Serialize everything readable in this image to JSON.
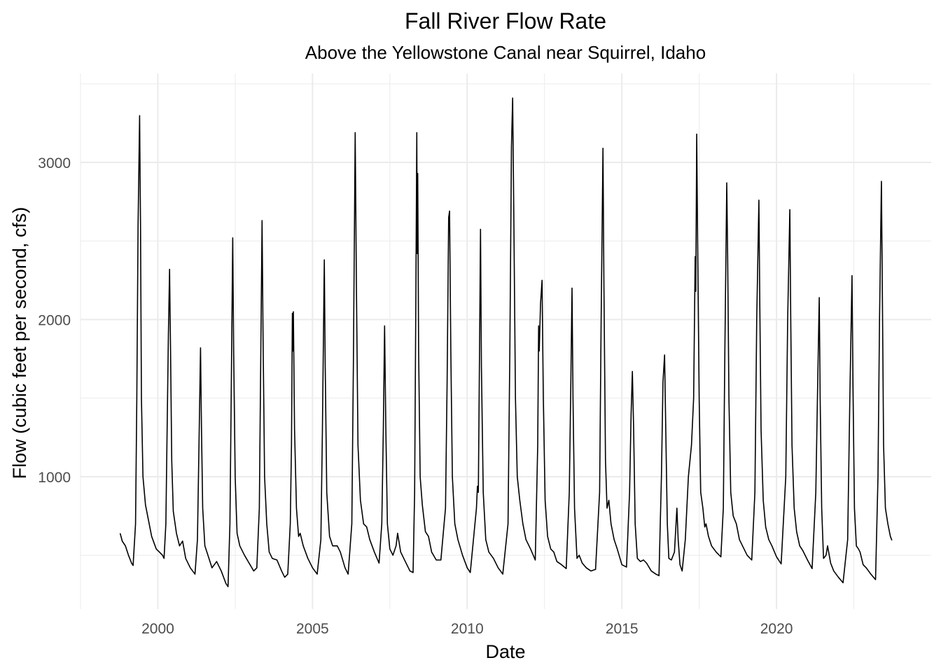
{
  "chart_data": {
    "type": "line",
    "title": "Fall River Flow Rate",
    "subtitle": "Above the Yellowstone Canal near Squirrel, Idaho",
    "xlabel": "Date",
    "ylabel": "Flow (cubic feet per second, cfs)",
    "xlim": [
      1997.5,
      2025.0
    ],
    "ylim": [
      158,
      3566
    ],
    "x_ticks": [
      2000,
      2005,
      2010,
      2015,
      2020
    ],
    "x_tick_labels": [
      "2000",
      "2005",
      "2010",
      "2015",
      "2020"
    ],
    "y_ticks": [
      1000,
      2000,
      3000
    ],
    "y_tick_labels": [
      "1000",
      "2000",
      "3000"
    ],
    "grid": true,
    "line_color": "#000000",
    "series": [
      {
        "name": "Flow",
        "points": [
          [
            1998.78,
            640
          ],
          [
            1998.85,
            590
          ],
          [
            1998.95,
            560
          ],
          [
            1999.05,
            500
          ],
          [
            1999.15,
            450
          ],
          [
            1999.2,
            435
          ],
          [
            1999.28,
            700
          ],
          [
            1999.32,
            1500
          ],
          [
            1999.36,
            2600
          ],
          [
            1999.41,
            3298
          ],
          [
            1999.44,
            2600
          ],
          [
            1999.47,
            1500
          ],
          [
            1999.52,
            1000
          ],
          [
            1999.6,
            820
          ],
          [
            1999.7,
            720
          ],
          [
            1999.8,
            620
          ],
          [
            1999.95,
            540
          ],
          [
            2000.05,
            520
          ],
          [
            2000.15,
            500
          ],
          [
            2000.2,
            480
          ],
          [
            2000.26,
            700
          ],
          [
            2000.3,
            1300
          ],
          [
            2000.34,
            1900
          ],
          [
            2000.38,
            2320
          ],
          [
            2000.41,
            1800
          ],
          [
            2000.45,
            1100
          ],
          [
            2000.5,
            780
          ],
          [
            2000.6,
            640
          ],
          [
            2000.7,
            560
          ],
          [
            2000.8,
            590
          ],
          [
            2000.9,
            480
          ],
          [
            2001.05,
            420
          ],
          [
            2001.2,
            380
          ],
          [
            2001.28,
            600
          ],
          [
            2001.33,
            1200
          ],
          [
            2001.38,
            1820
          ],
          [
            2001.41,
            1300
          ],
          [
            2001.45,
            800
          ],
          [
            2001.52,
            560
          ],
          [
            2001.62,
            500
          ],
          [
            2001.75,
            420
          ],
          [
            2001.9,
            460
          ],
          [
            2002.05,
            400
          ],
          [
            2002.2,
            320
          ],
          [
            2002.27,
            300
          ],
          [
            2002.33,
            700
          ],
          [
            2002.37,
            1500
          ],
          [
            2002.42,
            2520
          ],
          [
            2002.45,
            1800
          ],
          [
            2002.5,
            1000
          ],
          [
            2002.56,
            640
          ],
          [
            2002.65,
            560
          ],
          [
            2002.8,
            500
          ],
          [
            2002.95,
            450
          ],
          [
            2003.1,
            400
          ],
          [
            2003.2,
            420
          ],
          [
            2003.28,
            800
          ],
          [
            2003.32,
            1600
          ],
          [
            2003.37,
            2630
          ],
          [
            2003.4,
            1900
          ],
          [
            2003.45,
            1000
          ],
          [
            2003.52,
            700
          ],
          [
            2003.6,
            520
          ],
          [
            2003.7,
            480
          ],
          [
            2003.85,
            470
          ],
          [
            2004.0,
            400
          ],
          [
            2004.1,
            360
          ],
          [
            2004.2,
            380
          ],
          [
            2004.28,
            700
          ],
          [
            2004.32,
            1200
          ],
          [
            2004.35,
            2040
          ],
          [
            2004.365,
            1800
          ],
          [
            2004.38,
            2050
          ],
          [
            2004.42,
            1300
          ],
          [
            2004.48,
            800
          ],
          [
            2004.55,
            620
          ],
          [
            2004.6,
            640
          ],
          [
            2004.7,
            560
          ],
          [
            2004.85,
            480
          ],
          [
            2005.0,
            420
          ],
          [
            2005.15,
            380
          ],
          [
            2005.27,
            600
          ],
          [
            2005.32,
            1300
          ],
          [
            2005.38,
            2380
          ],
          [
            2005.41,
            1700
          ],
          [
            2005.46,
            900
          ],
          [
            2005.55,
            620
          ],
          [
            2005.65,
            560
          ],
          [
            2005.8,
            560
          ],
          [
            2005.9,
            520
          ],
          [
            2006.05,
            420
          ],
          [
            2006.15,
            380
          ],
          [
            2006.27,
            700
          ],
          [
            2006.32,
            1700
          ],
          [
            2006.38,
            3190
          ],
          [
            2006.42,
            2200
          ],
          [
            2006.47,
            1200
          ],
          [
            2006.55,
            850
          ],
          [
            2006.65,
            700
          ],
          [
            2006.75,
            680
          ],
          [
            2006.85,
            600
          ],
          [
            2007.0,
            520
          ],
          [
            2007.15,
            450
          ],
          [
            2007.24,
            700
          ],
          [
            2007.29,
            1300
          ],
          [
            2007.33,
            1960
          ],
          [
            2007.37,
            1300
          ],
          [
            2007.42,
            700
          ],
          [
            2007.5,
            540
          ],
          [
            2007.6,
            500
          ],
          [
            2007.7,
            560
          ],
          [
            2007.75,
            640
          ],
          [
            2007.85,
            520
          ],
          [
            2008.0,
            460
          ],
          [
            2008.15,
            400
          ],
          [
            2008.25,
            390
          ],
          [
            2008.3,
            900
          ],
          [
            2008.34,
            2100
          ],
          [
            2008.37,
            3190
          ],
          [
            2008.385,
            2420
          ],
          [
            2008.4,
            2930
          ],
          [
            2008.43,
            1800
          ],
          [
            2008.48,
            1000
          ],
          [
            2008.55,
            820
          ],
          [
            2008.65,
            650
          ],
          [
            2008.75,
            620
          ],
          [
            2008.85,
            520
          ],
          [
            2009.0,
            470
          ],
          [
            2009.15,
            470
          ],
          [
            2009.3,
            800
          ],
          [
            2009.35,
            1600
          ],
          [
            2009.4,
            2650
          ],
          [
            2009.43,
            2690
          ],
          [
            2009.47,
            1800
          ],
          [
            2009.52,
            1000
          ],
          [
            2009.6,
            700
          ],
          [
            2009.7,
            600
          ],
          [
            2009.85,
            500
          ],
          [
            2010.0,
            420
          ],
          [
            2010.1,
            390
          ],
          [
            2010.3,
            800
          ],
          [
            2010.33,
            940
          ],
          [
            2010.36,
            900
          ],
          [
            2010.4,
            1800
          ],
          [
            2010.43,
            2575
          ],
          [
            2010.46,
            1700
          ],
          [
            2010.52,
            900
          ],
          [
            2010.6,
            600
          ],
          [
            2010.7,
            520
          ],
          [
            2010.85,
            480
          ],
          [
            2011.0,
            420
          ],
          [
            2011.15,
            380
          ],
          [
            2011.32,
            700
          ],
          [
            2011.38,
            1800
          ],
          [
            2011.43,
            3100
          ],
          [
            2011.47,
            3410
          ],
          [
            2011.51,
            2600
          ],
          [
            2011.56,
            1500
          ],
          [
            2011.62,
            1000
          ],
          [
            2011.7,
            850
          ],
          [
            2011.8,
            700
          ],
          [
            2011.9,
            600
          ],
          [
            2012.05,
            540
          ],
          [
            2012.2,
            470
          ],
          [
            2012.28,
            1200
          ],
          [
            2012.31,
            1960
          ],
          [
            2012.33,
            1800
          ],
          [
            2012.37,
            2100
          ],
          [
            2012.42,
            2250
          ],
          [
            2012.46,
            1500
          ],
          [
            2012.52,
            850
          ],
          [
            2012.6,
            620
          ],
          [
            2012.7,
            540
          ],
          [
            2012.8,
            520
          ],
          [
            2012.9,
            460
          ],
          [
            2013.05,
            440
          ],
          [
            2013.2,
            415
          ],
          [
            2013.3,
            900
          ],
          [
            2013.35,
            1600
          ],
          [
            2013.39,
            2200
          ],
          [
            2013.42,
            1500
          ],
          [
            2013.47,
            800
          ],
          [
            2013.55,
            480
          ],
          [
            2013.62,
            500
          ],
          [
            2013.72,
            450
          ],
          [
            2013.85,
            420
          ],
          [
            2014.0,
            400
          ],
          [
            2014.15,
            410
          ],
          [
            2014.28,
            900
          ],
          [
            2014.33,
            2000
          ],
          [
            2014.39,
            3090
          ],
          [
            2014.42,
            2200
          ],
          [
            2014.47,
            1100
          ],
          [
            2014.52,
            800
          ],
          [
            2014.58,
            850
          ],
          [
            2014.65,
            700
          ],
          [
            2014.75,
            600
          ],
          [
            2014.85,
            540
          ],
          [
            2015.0,
            440
          ],
          [
            2015.15,
            425
          ],
          [
            2015.25,
            900
          ],
          [
            2015.3,
            1400
          ],
          [
            2015.34,
            1670
          ],
          [
            2015.38,
            1300
          ],
          [
            2015.43,
            700
          ],
          [
            2015.5,
            480
          ],
          [
            2015.6,
            460
          ],
          [
            2015.7,
            470
          ],
          [
            2015.8,
            450
          ],
          [
            2015.95,
            400
          ],
          [
            2016.1,
            380
          ],
          [
            2016.2,
            370
          ],
          [
            2016.28,
            1000
          ],
          [
            2016.33,
            1600
          ],
          [
            2016.38,
            1775
          ],
          [
            2016.42,
            1300
          ],
          [
            2016.47,
            700
          ],
          [
            2016.52,
            480
          ],
          [
            2016.6,
            470
          ],
          [
            2016.7,
            520
          ],
          [
            2016.78,
            800
          ],
          [
            2016.82,
            600
          ],
          [
            2016.88,
            440
          ],
          [
            2016.95,
            400
          ],
          [
            2017.05,
            600
          ],
          [
            2017.15,
            1000
          ],
          [
            2017.25,
            1200
          ],
          [
            2017.32,
            1500
          ],
          [
            2017.37,
            2400
          ],
          [
            2017.39,
            2180
          ],
          [
            2017.42,
            3180
          ],
          [
            2017.45,
            2500
          ],
          [
            2017.5,
            1500
          ],
          [
            2017.55,
            900
          ],
          [
            2017.62,
            800
          ],
          [
            2017.68,
            680
          ],
          [
            2017.72,
            700
          ],
          [
            2017.8,
            620
          ],
          [
            2017.9,
            560
          ],
          [
            2018.05,
            520
          ],
          [
            2018.2,
            490
          ],
          [
            2018.28,
            800
          ],
          [
            2018.33,
            1800
          ],
          [
            2018.39,
            2870
          ],
          [
            2018.42,
            2400
          ],
          [
            2018.46,
            1500
          ],
          [
            2018.52,
            900
          ],
          [
            2018.6,
            750
          ],
          [
            2018.7,
            700
          ],
          [
            2018.8,
            600
          ],
          [
            2018.9,
            560
          ],
          [
            2019.05,
            500
          ],
          [
            2019.2,
            470
          ],
          [
            2019.3,
            900
          ],
          [
            2019.36,
            2000
          ],
          [
            2019.43,
            2760
          ],
          [
            2019.46,
            2100
          ],
          [
            2019.5,
            1300
          ],
          [
            2019.57,
            850
          ],
          [
            2019.65,
            680
          ],
          [
            2019.75,
            600
          ],
          [
            2019.85,
            560
          ],
          [
            2020.0,
            490
          ],
          [
            2020.15,
            445
          ],
          [
            2020.3,
            1000
          ],
          [
            2020.36,
            2000
          ],
          [
            2020.43,
            2700
          ],
          [
            2020.46,
            2000
          ],
          [
            2020.5,
            1200
          ],
          [
            2020.57,
            800
          ],
          [
            2020.65,
            650
          ],
          [
            2020.75,
            560
          ],
          [
            2020.85,
            530
          ],
          [
            2021.0,
            470
          ],
          [
            2021.15,
            415
          ],
          [
            2021.27,
            900
          ],
          [
            2021.33,
            1600
          ],
          [
            2021.38,
            2140
          ],
          [
            2021.41,
            1500
          ],
          [
            2021.46,
            800
          ],
          [
            2021.52,
            480
          ],
          [
            2021.6,
            500
          ],
          [
            2021.65,
            560
          ],
          [
            2021.75,
            450
          ],
          [
            2021.85,
            400
          ],
          [
            2022.0,
            360
          ],
          [
            2022.15,
            325
          ],
          [
            2022.3,
            600
          ],
          [
            2022.37,
            1500
          ],
          [
            2022.44,
            2280
          ],
          [
            2022.47,
            1600
          ],
          [
            2022.52,
            800
          ],
          [
            2022.58,
            560
          ],
          [
            2022.65,
            540
          ],
          [
            2022.7,
            520
          ],
          [
            2022.8,
            440
          ],
          [
            2022.9,
            420
          ],
          [
            2023.05,
            380
          ],
          [
            2023.2,
            345
          ],
          [
            2023.28,
            1000
          ],
          [
            2023.33,
            2000
          ],
          [
            2023.39,
            2880
          ],
          [
            2023.42,
            2200
          ],
          [
            2023.46,
            1200
          ],
          [
            2023.52,
            800
          ],
          [
            2023.6,
            700
          ],
          [
            2023.68,
            620
          ],
          [
            2023.73,
            595
          ]
        ]
      }
    ]
  }
}
